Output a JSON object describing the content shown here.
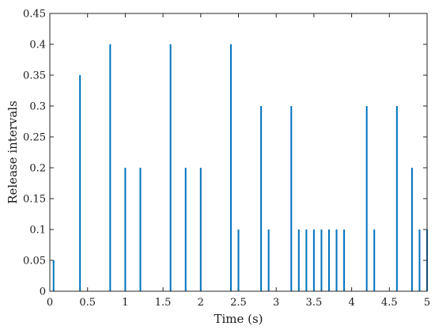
{
  "chart_data": {
    "type": "bar",
    "style": "stem",
    "xlabel": "Time (s)",
    "ylabel": "Release intervals",
    "xlim": [
      0,
      5
    ],
    "ylim": [
      0,
      0.45
    ],
    "xticks": [
      0,
      0.5,
      1,
      1.5,
      2,
      2.5,
      3,
      3.5,
      4,
      4.5,
      5
    ],
    "xtick_labels": [
      "0",
      "0.5",
      "1",
      "1.5",
      "2",
      "2.5",
      "3",
      "3.5",
      "4",
      "4.5",
      "5"
    ],
    "yticks": [
      0,
      0.05,
      0.1,
      0.15,
      0.2,
      0.25,
      0.3,
      0.35,
      0.4,
      0.45
    ],
    "ytick_labels": [
      "0",
      "0.05",
      "0.1",
      "0.15",
      "0.2",
      "0.25",
      "0.3",
      "0.35",
      "0.4",
      "0.45"
    ],
    "grid": false,
    "color": "#0072BD",
    "x": [
      0.05,
      0.4,
      0.8,
      1.0,
      1.2,
      1.6,
      1.8,
      2.0,
      2.4,
      2.5,
      2.8,
      2.9,
      3.2,
      3.3,
      3.4,
      3.5,
      3.6,
      3.7,
      3.8,
      3.9,
      4.2,
      4.3,
      4.6,
      4.8,
      4.9,
      5.0
    ],
    "values": [
      0.05,
      0.35,
      0.4,
      0.2,
      0.2,
      0.4,
      0.2,
      0.2,
      0.4,
      0.1,
      0.3,
      0.1,
      0.3,
      0.1,
      0.1,
      0.1,
      0.1,
      0.1,
      0.1,
      0.1,
      0.3,
      0.1,
      0.3,
      0.2,
      0.1,
      0.1
    ]
  }
}
